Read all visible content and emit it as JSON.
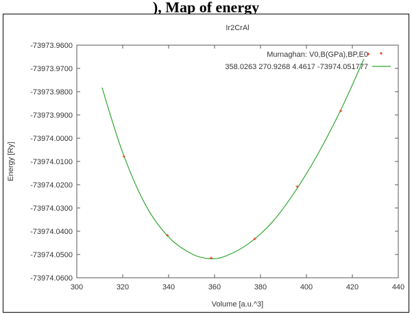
{
  "header_text": "), Map of energy",
  "chart_data": {
    "type": "line",
    "title": "Ir2CrAl",
    "xlabel": "Volume [a.u.^3]",
    "ylabel": "Energy [Ry]",
    "xlim": [
      300,
      440
    ],
    "ylim": [
      -73974.06,
      -73973.96
    ],
    "x_ticks": [
      "300",
      "320",
      "340",
      "360",
      "380",
      "400",
      "420",
      "440"
    ],
    "y_ticks": [
      "-73973.9600",
      "-73973.9700",
      "-73973.9800",
      "-73973.9900",
      "-73974.0000",
      "-73974.0100",
      "-73974.0200",
      "-73974.0300",
      "-73974.0400",
      "-73974.0500",
      "-73974.0600"
    ],
    "grid": false,
    "legend_position": "top-right",
    "series": [
      {
        "name": "",
        "style": "points",
        "color": "#e8553a",
        "x": [
          320.5,
          339.5,
          358.5,
          377.5,
          396,
          415,
          427
        ],
        "y": [
          -73974.0078,
          -73974.0418,
          -73974.0515,
          -73974.0433,
          -73974.0208,
          -73973.9882,
          -73973.9638
        ]
      },
      {
        "name": "Murnaghan: V0,B(GPa),BP,E0",
        "style": "line",
        "color": "#2fa52f",
        "x": [
          311,
          320,
          330,
          340,
          350,
          358,
          365,
          375,
          385,
          395,
          405,
          415,
          425
        ],
        "y": [
          -73973.9783,
          -73974.0062,
          -73974.0288,
          -73974.0425,
          -73974.0497,
          -73974.0518,
          -73974.0506,
          -73974.0452,
          -73974.0362,
          -73974.023,
          -73974.0068,
          -73973.9878,
          -73973.966
        ]
      }
    ],
    "legend": [
      {
        "label": "Murnaghan: V0,B(GPa),BP,E0",
        "marker": "point",
        "color": "#e8553a"
      },
      {
        "label": "358.0263 270.9268 4.4617 -73974.051777",
        "marker": "line",
        "color": "#2fa52f"
      }
    ]
  }
}
